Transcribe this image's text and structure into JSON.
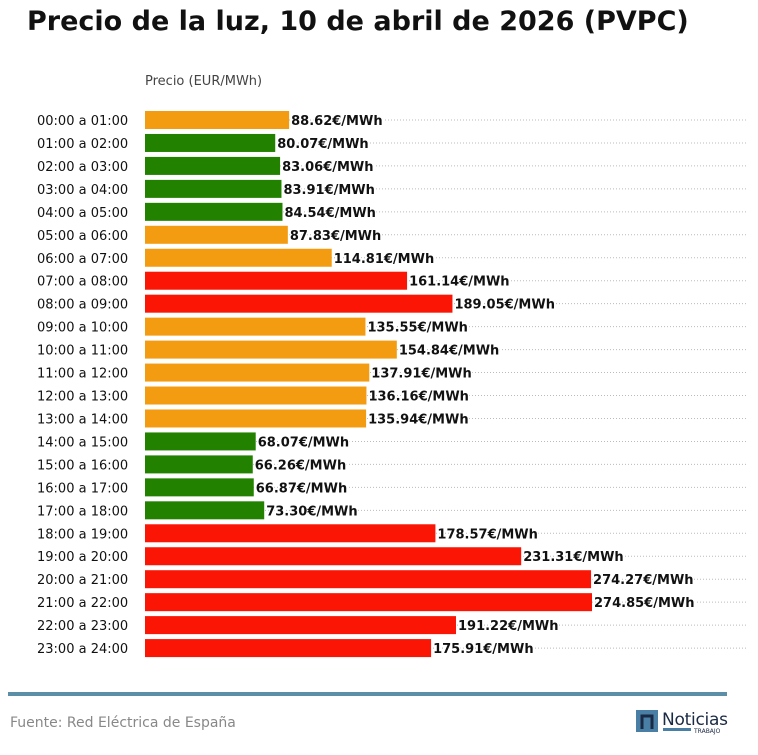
{
  "title": "Precio de la luz, 10 de abril de 2026 (PVPC)",
  "footer": {
    "source": "Fuente: Red Eléctrica de España",
    "logo_text": "Noticias",
    "logo_subtext": "TRABAJO"
  },
  "colors": {
    "low": "#228200",
    "mid": "#f39c12",
    "high": "#fb1505",
    "grid": "#bbbbbb",
    "accent": "#5b8fa8"
  },
  "chart_data": {
    "type": "bar",
    "orientation": "horizontal",
    "title": "Precio de la luz, 10 de abril de 2026 (PVPC)",
    "xlabel": "Precio (EUR/MWh)",
    "ylabel": "",
    "unit_suffix": "€/MWh",
    "grid": true,
    "categories": [
      "00:00 a 01:00",
      "01:00 a 02:00",
      "02:00 a 03:00",
      "03:00 a 04:00",
      "04:00 a 05:00",
      "05:00 a 06:00",
      "06:00 a 07:00",
      "07:00 a 08:00",
      "08:00 a 09:00",
      "09:00 a 10:00",
      "10:00 a 11:00",
      "11:00 a 12:00",
      "12:00 a 13:00",
      "13:00 a 14:00",
      "14:00 a 15:00",
      "15:00 a 16:00",
      "16:00 a 17:00",
      "17:00 a 18:00",
      "18:00 a 19:00",
      "19:00 a 20:00",
      "20:00 a 21:00",
      "21:00 a 22:00",
      "22:00 a 23:00",
      "23:00 a 24:00"
    ],
    "values": [
      88.62,
      80.07,
      83.06,
      83.91,
      84.54,
      87.83,
      114.81,
      161.14,
      189.05,
      135.55,
      154.84,
      137.91,
      136.16,
      135.94,
      68.07,
      66.26,
      66.87,
      73.3,
      178.57,
      231.31,
      274.27,
      274.85,
      191.22,
      175.91
    ],
    "labels": [
      "88.62€/MWh",
      "80.07€/MWh",
      "83.06€/MWh",
      "83.91€/MWh",
      "84.54€/MWh",
      "87.83€/MWh",
      "114.81€/MWh",
      "161.14€/MWh",
      "189.05€/MWh",
      "135.55€/MWh",
      "154.84€/MWh",
      "137.91€/MWh",
      "136.16€/MWh",
      "135.94€/MWh",
      "68.07€/MWh",
      "66.26€/MWh",
      "66.87€/MWh",
      "73.30€/MWh",
      "178.57€/MWh",
      "231.31€/MWh",
      "274.27€/MWh",
      "274.85€/MWh",
      "191.22€/MWh",
      "175.91€/MWh"
    ],
    "levels": [
      "mid",
      "low",
      "low",
      "low",
      "low",
      "mid",
      "mid",
      "high",
      "high",
      "mid",
      "mid",
      "mid",
      "mid",
      "mid",
      "low",
      "low",
      "low",
      "low",
      "high",
      "high",
      "high",
      "high",
      "high",
      "high"
    ],
    "xlim": [
      0,
      274.85
    ]
  }
}
